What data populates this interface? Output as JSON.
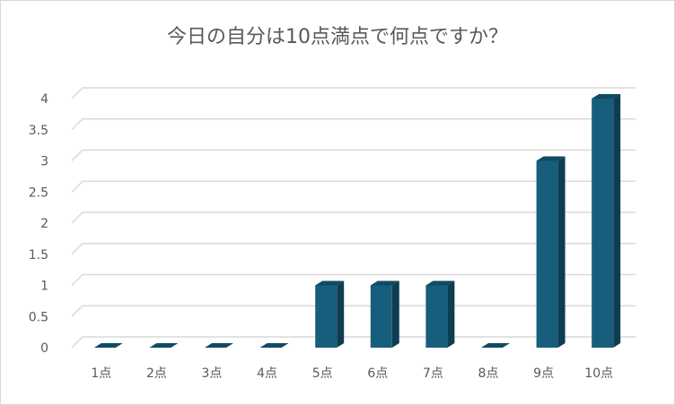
{
  "chart_data": {
    "type": "bar",
    "title": "今日の自分は10点満点で何点ですか？",
    "categories": [
      "1点",
      "2点",
      "3点",
      "4点",
      "5点",
      "6点",
      "7点",
      "8点",
      "9点",
      "10点"
    ],
    "values": [
      0,
      0,
      0,
      0,
      1,
      1,
      1,
      0,
      3,
      4
    ],
    "color": "#175e7c",
    "ylim": [
      0,
      4
    ],
    "yticks": [
      0,
      0.5,
      1,
      1.5,
      2,
      2.5,
      3,
      3.5,
      4
    ],
    "grid": true
  }
}
